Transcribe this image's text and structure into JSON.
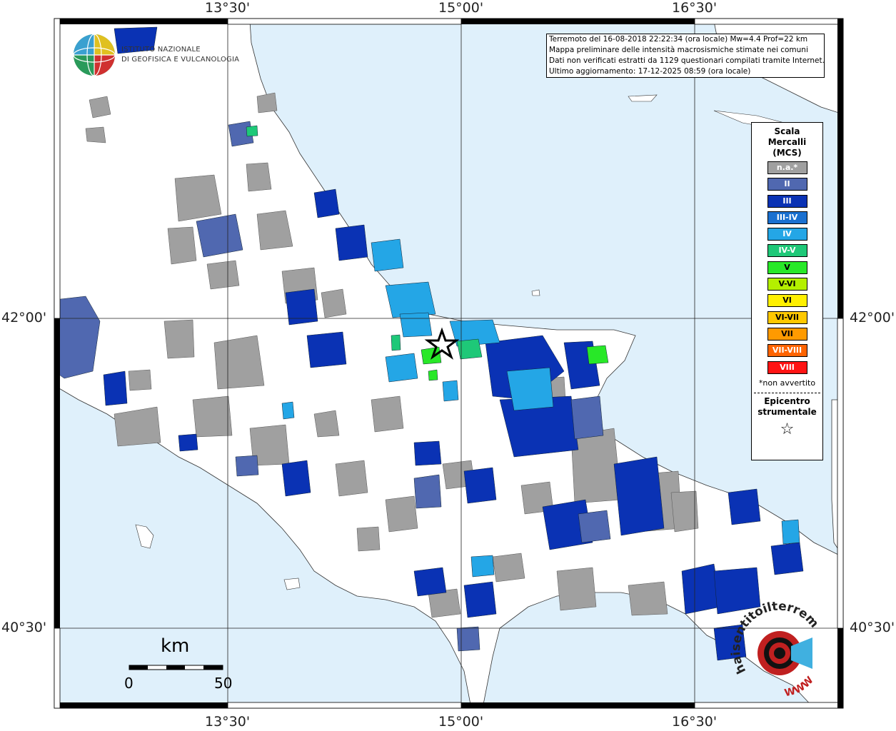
{
  "info_box": {
    "line1": "Terremoto del 16-08-2018 22:22:34 (ora locale) Mw=4.4 Prof=22 km",
    "line2": "Mappa preliminare delle intensità macrosismiche stimate nei comuni",
    "line3": "Dati non verificati estratti da 1129 questionari compilati tramite Internet.",
    "line4": "Ultimo aggiornamento: 17-12-2025 08:59 (ora locale)"
  },
  "institute": {
    "line1": "ISTITUTO NAZIONALE",
    "line2": "DI GEOFISICA E VULCANOLOGIA"
  },
  "coordinates": {
    "top": [
      "13°30'",
      "15°00'",
      "16°30'"
    ],
    "bottom": [
      "13°30'",
      "15°00'",
      "16°30'"
    ],
    "left": [
      "42°00'",
      "40°30'"
    ],
    "right": [
      "42°00'",
      "40°30'"
    ]
  },
  "legend": {
    "title_line1": "Scala",
    "title_line2": "Mercalli",
    "title_line3": "(MCS)",
    "items": [
      {
        "label": "n.a.*",
        "color": "#a0a0a0"
      },
      {
        "label": "II",
        "color": "#5068b0"
      },
      {
        "label": "III",
        "color": "#0a32b4"
      },
      {
        "label": "III-IV",
        "color": "#1a70d0"
      },
      {
        "label": "IV",
        "color": "#24a6e6"
      },
      {
        "label": "IV-V",
        "color": "#1ec878"
      },
      {
        "label": "V",
        "color": "#28e828"
      },
      {
        "label": "V-VI",
        "color": "#b4f000"
      },
      {
        "label": "VI",
        "color": "#fff000"
      },
      {
        "label": "VI-VII",
        "color": "#ffc800"
      },
      {
        "label": "VII",
        "color": "#ff9a00"
      },
      {
        "label": "VII-VIII",
        "color": "#ff6400"
      },
      {
        "label": "VIII",
        "color": "#ff1414"
      }
    ],
    "note": "*non avvertito",
    "epicenter_line1": "Epicentro",
    "epicenter_line2": "strumentale",
    "epicenter_symbol": "☆"
  },
  "scale_bar": {
    "unit": "km",
    "start": "0",
    "end": "50"
  },
  "watermark": {
    "text1": "haisentitoilterremoto.it",
    "text2": "WWW"
  },
  "colors": {
    "sea": "#dff0fb",
    "land": "#ffffff",
    "grid": "#333333"
  }
}
